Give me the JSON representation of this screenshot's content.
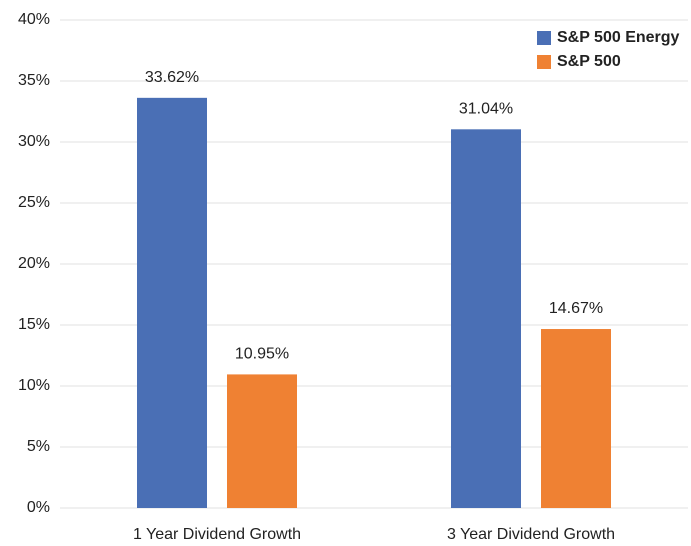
{
  "chart_data": {
    "type": "bar",
    "categories": [
      "1 Year Dividend Growth",
      "3 Year Dividend Growth"
    ],
    "series": [
      {
        "name": "S&P 500 Energy",
        "color": "#4a6fb5",
        "values": [
          33.62,
          31.04
        ],
        "value_labels": [
          "33.62%",
          "31.04%"
        ]
      },
      {
        "name": "S&P 500",
        "color": "#ef8133",
        "values": [
          10.95,
          14.67
        ],
        "value_labels": [
          "10.95%",
          "14.67%"
        ]
      }
    ],
    "ylim": [
      0,
      40
    ],
    "yticks": [
      {
        "value": 0,
        "label": "0%"
      },
      {
        "value": 5,
        "label": "5%"
      },
      {
        "value": 10,
        "label": "10%"
      },
      {
        "value": 15,
        "label": "15%"
      },
      {
        "value": 20,
        "label": "20%"
      },
      {
        "value": 25,
        "label": "25%"
      },
      {
        "value": 30,
        "label": "30%"
      },
      {
        "value": 35,
        "label": "35%"
      },
      {
        "value": 40,
        "label": "40%"
      }
    ],
    "grid": true,
    "legend": "top-right"
  }
}
